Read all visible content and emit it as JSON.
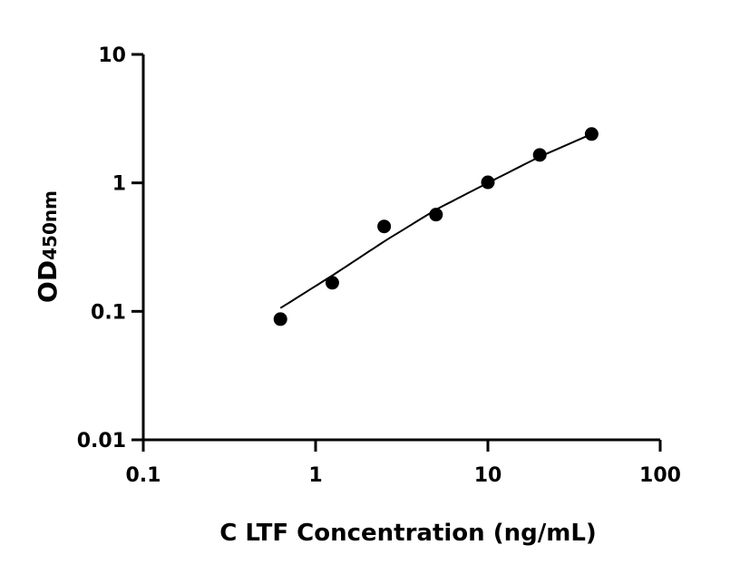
{
  "chart_data": {
    "type": "scatter",
    "title": "",
    "xlabel": "C LTF Concentration (ng/mL)",
    "ylabel": "OD",
    "ylabel_sub": "450nm",
    "xscale": "log",
    "yscale": "log",
    "xlim": [
      0.1,
      100
    ],
    "ylim": [
      0.01,
      10
    ],
    "x_ticks": [
      0.1,
      1,
      10,
      100
    ],
    "x_tick_labels": [
      "0.1",
      "1",
      "10",
      "100"
    ],
    "y_ticks": [
      0.01,
      0.1,
      1,
      10
    ],
    "y_tick_labels": [
      "0.01",
      "0.1",
      "1",
      "10"
    ],
    "grid": false,
    "colors": {
      "points": "#000000",
      "curve": "#000000"
    },
    "points": {
      "x": [
        0.625,
        1.25,
        2.5,
        5,
        10,
        20,
        40
      ],
      "y": [
        0.087,
        0.167,
        0.458,
        0.566,
        1.01,
        1.65,
        2.4
      ]
    },
    "fit_curve": {
      "x": [
        0.625,
        1.25,
        2.5,
        5,
        10,
        20,
        40
      ],
      "y": [
        0.106,
        0.19,
        0.35,
        0.62,
        1.0,
        1.6,
        2.4
      ]
    }
  }
}
